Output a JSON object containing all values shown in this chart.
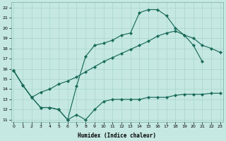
{
  "xlabel": "Humidex (Indice chaleur)",
  "bg_color": "#c5e8e2",
  "grid_color": "#a8d4cc",
  "line_color": "#1a6b5a",
  "curve_upper": {
    "x": [
      0,
      1,
      2,
      3,
      4,
      5,
      6,
      7,
      8,
      9,
      10,
      11,
      12,
      13,
      14,
      15,
      16,
      17,
      18,
      19,
      20,
      21
    ],
    "y": [
      15.8,
      14.4,
      13.2,
      12.2,
      12.2,
      12.0,
      11.0,
      14.3,
      17.2,
      18.3,
      18.5,
      18.8,
      19.3,
      19.5,
      21.5,
      21.8,
      21.8,
      21.2,
      20.0,
      19.3,
      18.3,
      16.7
    ]
  },
  "curve_diag": {
    "x": [
      0,
      1,
      2,
      3,
      4,
      5,
      6,
      7,
      8,
      9,
      10,
      11,
      12,
      13,
      14,
      15,
      16,
      17,
      18,
      19,
      20,
      21,
      22,
      23
    ],
    "y": [
      15.8,
      14.4,
      13.2,
      13.7,
      14.0,
      14.5,
      14.8,
      15.2,
      15.7,
      16.2,
      16.7,
      17.1,
      17.5,
      17.9,
      18.3,
      18.7,
      19.2,
      19.5,
      19.7,
      19.3,
      19.0,
      18.3,
      18.0,
      17.6
    ]
  },
  "curve_lower": {
    "x": [
      0,
      1,
      2,
      3,
      4,
      5,
      6,
      7,
      8,
      9,
      10,
      11,
      12,
      13,
      14,
      15,
      16,
      17,
      18,
      19,
      20,
      21,
      22,
      23
    ],
    "y": [
      15.8,
      14.4,
      13.2,
      12.2,
      12.2,
      12.0,
      11.0,
      11.5,
      11.0,
      12.0,
      12.8,
      13.0,
      13.0,
      13.0,
      13.0,
      13.2,
      13.2,
      13.2,
      13.4,
      13.5,
      13.5,
      13.5,
      13.6,
      13.6
    ]
  },
  "ylim": [
    10.8,
    22.5
  ],
  "xlim": [
    -0.3,
    23.3
  ],
  "yticks": [
    11,
    12,
    13,
    14,
    15,
    16,
    17,
    18,
    19,
    20,
    21,
    22
  ],
  "xticks": [
    0,
    1,
    2,
    3,
    4,
    5,
    6,
    7,
    8,
    9,
    10,
    11,
    12,
    13,
    14,
    15,
    16,
    17,
    18,
    19,
    20,
    21,
    22,
    23
  ]
}
